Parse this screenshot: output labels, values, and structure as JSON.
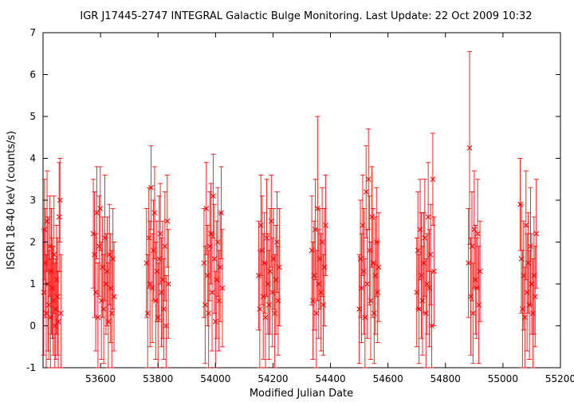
{
  "chart_data": {
    "type": "scatter",
    "title": "IGR J17445-2747    INTEGRAL Galactic Bulge Monitoring.  Last Update: 22 Oct 2009 10:32",
    "xlabel": "Modified Julian Date",
    "ylabel": "ISGRI 18-40 keV (counts/s)",
    "xlim": [
      53400,
      55200
    ],
    "ylim": [
      -1,
      7
    ],
    "xticks": [
      53600,
      53800,
      54000,
      54200,
      54400,
      54600,
      54800,
      55000,
      55200
    ],
    "yticks": [
      -1,
      0,
      1,
      2,
      3,
      4,
      5,
      6,
      7
    ],
    "grid": false,
    "legend": "none",
    "series_color": "#ff0000",
    "error_bars": true,
    "series": [
      {
        "points": [
          {
            "x": 53402,
            "y": 0.8,
            "err": 1.5
          },
          {
            "x": 53405,
            "y": 2.3,
            "err": 1.2
          },
          {
            "x": 53408,
            "y": 1.5,
            "err": 1.3
          },
          {
            "x": 53411,
            "y": 0.3,
            "err": 1.4
          },
          {
            "x": 53414,
            "y": 2.5,
            "err": 1.2
          },
          {
            "x": 53417,
            "y": 1.0,
            "err": 1.6
          },
          {
            "x": 53420,
            "y": 0.5,
            "err": 1.3
          },
          {
            "x": 53423,
            "y": 1.9,
            "err": 1.2
          },
          {
            "x": 53426,
            "y": 0.2,
            "err": 1.4
          },
          {
            "x": 53429,
            "y": 1.3,
            "err": 1.5
          },
          {
            "x": 53432,
            "y": 0.9,
            "err": 1.2
          },
          {
            "x": 53435,
            "y": 0.6,
            "err": 1.3
          },
          {
            "x": 53438,
            "y": 1.7,
            "err": 1.4
          },
          {
            "x": 53441,
            "y": 0.0,
            "err": 1.5
          },
          {
            "x": 53444,
            "y": 0.4,
            "err": 1.2
          },
          {
            "x": 53447,
            "y": 1.1,
            "err": 1.3
          },
          {
            "x": 53450,
            "y": 0.7,
            "err": 1.4
          },
          {
            "x": 53453,
            "y": 0.1,
            "err": 1.2
          },
          {
            "x": 53456,
            "y": 2.6,
            "err": 1.3
          },
          {
            "x": 53459,
            "y": 3.0,
            "err": 1.0
          },
          {
            "x": 53462,
            "y": 0.3,
            "err": 1.4
          },
          {
            "x": 53575,
            "y": 2.2,
            "err": 1.3
          },
          {
            "x": 53579,
            "y": 1.7,
            "err": 1.5
          },
          {
            "x": 53583,
            "y": 0.8,
            "err": 1.4
          },
          {
            "x": 53587,
            "y": 2.7,
            "err": 1.1
          },
          {
            "x": 53591,
            "y": 0.2,
            "err": 1.3
          },
          {
            "x": 53595,
            "y": 1.9,
            "err": 1.2
          },
          {
            "x": 53599,
            "y": 2.8,
            "err": 1.0
          },
          {
            "x": 53603,
            "y": 0.6,
            "err": 1.4
          },
          {
            "x": 53607,
            "y": 1.4,
            "err": 1.2
          },
          {
            "x": 53611,
            "y": 0.4,
            "err": 1.3
          },
          {
            "x": 53615,
            "y": 2.1,
            "err": 1.5
          },
          {
            "x": 53619,
            "y": 1.0,
            "err": 1.2
          },
          {
            "x": 53623,
            "y": 1.3,
            "err": 1.3
          },
          {
            "x": 53627,
            "y": 0.1,
            "err": 1.4
          },
          {
            "x": 53631,
            "y": 1.7,
            "err": 1.2
          },
          {
            "x": 53635,
            "y": 0.9,
            "err": 1.3
          },
          {
            "x": 53639,
            "y": 0.3,
            "err": 1.5
          },
          {
            "x": 53643,
            "y": 1.6,
            "err": 1.2
          },
          {
            "x": 53647,
            "y": 0.7,
            "err": 1.3
          },
          {
            "x": 53760,
            "y": 1.5,
            "err": 1.3
          },
          {
            "x": 53764,
            "y": 0.3,
            "err": 1.4
          },
          {
            "x": 53768,
            "y": 2.1,
            "err": 1.2
          },
          {
            "x": 53772,
            "y": 1.0,
            "err": 1.5
          },
          {
            "x": 53776,
            "y": 3.3,
            "err": 1.0
          },
          {
            "x": 53780,
            "y": 0.9,
            "err": 1.3
          },
          {
            "x": 53784,
            "y": 1.8,
            "err": 1.2
          },
          {
            "x": 53788,
            "y": 2.7,
            "err": 1.1
          },
          {
            "x": 53792,
            "y": 0.6,
            "err": 1.4
          },
          {
            "x": 53796,
            "y": 1.3,
            "err": 1.2
          },
          {
            "x": 53800,
            "y": 0.2,
            "err": 1.3
          },
          {
            "x": 53804,
            "y": 1.6,
            "err": 1.5
          },
          {
            "x": 53808,
            "y": 2.2,
            "err": 1.2
          },
          {
            "x": 53812,
            "y": 0.8,
            "err": 1.3
          },
          {
            "x": 53816,
            "y": 1.1,
            "err": 1.4
          },
          {
            "x": 53820,
            "y": 0.4,
            "err": 1.2
          },
          {
            "x": 53824,
            "y": 1.9,
            "err": 1.3
          },
          {
            "x": 53828,
            "y": 0.0,
            "err": 1.2
          },
          {
            "x": 53832,
            "y": 2.5,
            "err": 1.1
          },
          {
            "x": 53836,
            "y": 1.0,
            "err": 1.3
          },
          {
            "x": 53960,
            "y": 1.5,
            "err": 1.3
          },
          {
            "x": 53964,
            "y": 0.5,
            "err": 1.4
          },
          {
            "x": 53968,
            "y": 2.8,
            "err": 1.1
          },
          {
            "x": 53972,
            "y": 1.2,
            "err": 1.2
          },
          {
            "x": 53976,
            "y": 0.3,
            "err": 1.5
          },
          {
            "x": 53980,
            "y": 1.9,
            "err": 1.3
          },
          {
            "x": 53984,
            "y": 2.2,
            "err": 1.2
          },
          {
            "x": 53988,
            "y": 0.8,
            "err": 1.4
          },
          {
            "x": 53992,
            "y": 3.1,
            "err": 1.0
          },
          {
            "x": 53996,
            "y": 1.6,
            "err": 1.3
          },
          {
            "x": 54000,
            "y": 0.1,
            "err": 1.2
          },
          {
            "x": 54004,
            "y": 1.1,
            "err": 1.4
          },
          {
            "x": 54008,
            "y": 2.0,
            "err": 1.3
          },
          {
            "x": 54012,
            "y": 0.6,
            "err": 1.2
          },
          {
            "x": 54016,
            "y": 1.4,
            "err": 1.3
          },
          {
            "x": 54020,
            "y": 2.7,
            "err": 1.1
          },
          {
            "x": 54024,
            "y": 0.9,
            "err": 1.4
          },
          {
            "x": 54150,
            "y": 1.2,
            "err": 1.3
          },
          {
            "x": 54154,
            "y": 0.4,
            "err": 1.4
          },
          {
            "x": 54158,
            "y": 2.4,
            "err": 1.2
          },
          {
            "x": 54162,
            "y": 1.8,
            "err": 1.3
          },
          {
            "x": 54166,
            "y": 0.7,
            "err": 1.5
          },
          {
            "x": 54170,
            "y": 1.5,
            "err": 1.2
          },
          {
            "x": 54174,
            "y": 0.2,
            "err": 1.3
          },
          {
            "x": 54178,
            "y": 2.1,
            "err": 1.4
          },
          {
            "x": 54182,
            "y": 1.0,
            "err": 1.2
          },
          {
            "x": 54186,
            "y": 0.5,
            "err": 1.3
          },
          {
            "x": 54190,
            "y": 1.3,
            "err": 1.5
          },
          {
            "x": 54194,
            "y": 2.5,
            "err": 1.1
          },
          {
            "x": 54198,
            "y": 0.8,
            "err": 1.3
          },
          {
            "x": 54202,
            "y": 1.6,
            "err": 1.2
          },
          {
            "x": 54206,
            "y": 0.3,
            "err": 1.4
          },
          {
            "x": 54210,
            "y": 1.1,
            "err": 1.3
          },
          {
            "x": 54214,
            "y": 2.0,
            "err": 1.2
          },
          {
            "x": 54218,
            "y": 0.6,
            "err": 1.3
          },
          {
            "x": 54222,
            "y": 1.4,
            "err": 1.4
          },
          {
            "x": 54335,
            "y": 1.8,
            "err": 1.3
          },
          {
            "x": 54339,
            "y": 0.6,
            "err": 1.4
          },
          {
            "x": 54343,
            "y": 1.2,
            "err": 1.3
          },
          {
            "x": 54347,
            "y": 2.3,
            "err": 1.2
          },
          {
            "x": 54351,
            "y": 0.3,
            "err": 1.5
          },
          {
            "x": 54355,
            "y": 2.8,
            "err": 2.2
          },
          {
            "x": 54359,
            "y": 1.0,
            "err": 1.3
          },
          {
            "x": 54363,
            "y": 1.6,
            "err": 1.2
          },
          {
            "x": 54367,
            "y": 0.8,
            "err": 1.4
          },
          {
            "x": 54371,
            "y": 2.0,
            "err": 1.3
          },
          {
            "x": 54375,
            "y": 0.5,
            "err": 1.2
          },
          {
            "x": 54379,
            "y": 1.4,
            "err": 1.4
          },
          {
            "x": 54383,
            "y": 2.4,
            "err": 1.2
          },
          {
            "x": 54500,
            "y": 0.4,
            "err": 1.3
          },
          {
            "x": 54504,
            "y": 1.6,
            "err": 1.4
          },
          {
            "x": 54508,
            "y": 0.9,
            "err": 1.3
          },
          {
            "x": 54512,
            "y": 2.4,
            "err": 1.2
          },
          {
            "x": 54516,
            "y": 1.3,
            "err": 1.5
          },
          {
            "x": 54520,
            "y": 0.2,
            "err": 1.4
          },
          {
            "x": 54524,
            "y": 3.2,
            "err": 1.1
          },
          {
            "x": 54528,
            "y": 1.0,
            "err": 1.3
          },
          {
            "x": 54532,
            "y": 3.5,
            "err": 1.2
          },
          {
            "x": 54536,
            "y": 1.8,
            "err": 1.3
          },
          {
            "x": 54540,
            "y": 0.6,
            "err": 1.4
          },
          {
            "x": 54544,
            "y": 2.6,
            "err": 1.2
          },
          {
            "x": 54548,
            "y": 1.5,
            "err": 1.3
          },
          {
            "x": 54552,
            "y": 0.3,
            "err": 1.2
          },
          {
            "x": 54556,
            "y": 1.2,
            "err": 1.4
          },
          {
            "x": 54560,
            "y": 2.0,
            "err": 1.3
          },
          {
            "x": 54564,
            "y": 0.8,
            "err": 1.2
          },
          {
            "x": 54568,
            "y": 1.4,
            "err": 1.3
          },
          {
            "x": 54700,
            "y": 0.8,
            "err": 1.3
          },
          {
            "x": 54704,
            "y": 1.8,
            "err": 1.4
          },
          {
            "x": 54708,
            "y": 0.4,
            "err": 1.3
          },
          {
            "x": 54712,
            "y": 2.3,
            "err": 1.2
          },
          {
            "x": 54716,
            "y": 1.2,
            "err": 1.5
          },
          {
            "x": 54720,
            "y": 0.6,
            "err": 1.3
          },
          {
            "x": 54724,
            "y": 1.5,
            "err": 1.2
          },
          {
            "x": 54728,
            "y": 2.1,
            "err": 1.4
          },
          {
            "x": 54732,
            "y": 0.3,
            "err": 1.3
          },
          {
            "x": 54736,
            "y": 1.0,
            "err": 1.2
          },
          {
            "x": 54740,
            "y": 2.6,
            "err": 1.3
          },
          {
            "x": 54744,
            "y": 0.9,
            "err": 1.4
          },
          {
            "x": 54748,
            "y": 1.7,
            "err": 1.2
          },
          {
            "x": 54752,
            "y": 0.0,
            "err": 1.3
          },
          {
            "x": 54756,
            "y": 3.5,
            "err": 1.1
          },
          {
            "x": 54760,
            "y": 1.3,
            "err": 1.3
          },
          {
            "x": 54880,
            "y": 1.5,
            "err": 1.3
          },
          {
            "x": 54884,
            "y": 4.25,
            "err": 2.3
          },
          {
            "x": 54888,
            "y": 0.7,
            "err": 1.4
          },
          {
            "x": 54892,
            "y": 1.9,
            "err": 1.3
          },
          {
            "x": 54896,
            "y": 0.3,
            "err": 1.2
          },
          {
            "x": 54900,
            "y": 2.3,
            "err": 1.4
          },
          {
            "x": 54904,
            "y": 1.1,
            "err": 1.3
          },
          {
            "x": 54908,
            "y": 0.9,
            "err": 1.2
          },
          {
            "x": 54912,
            "y": 2.2,
            "err": 1.3
          },
          {
            "x": 54916,
            "y": 0.5,
            "err": 1.4
          },
          {
            "x": 54920,
            "y": 1.3,
            "err": 1.2
          },
          {
            "x": 55060,
            "y": 2.9,
            "err": 1.1
          },
          {
            "x": 55064,
            "y": 1.6,
            "err": 1.3
          },
          {
            "x": 55068,
            "y": 0.4,
            "err": 1.4
          },
          {
            "x": 55072,
            "y": 1.2,
            "err": 1.3
          },
          {
            "x": 55076,
            "y": 0.2,
            "err": 1.2
          },
          {
            "x": 55080,
            "y": 2.4,
            "err": 1.3
          },
          {
            "x": 55084,
            "y": 0.8,
            "err": 1.4
          },
          {
            "x": 55088,
            "y": 1.5,
            "err": 1.2
          },
          {
            "x": 55092,
            "y": 0.5,
            "err": 1.3
          },
          {
            "x": 55096,
            "y": 1.9,
            "err": 1.4
          },
          {
            "x": 55100,
            "y": 1.0,
            "err": 1.2
          },
          {
            "x": 55104,
            "y": 0.3,
            "err": 1.3
          },
          {
            "x": 55108,
            "y": 1.2,
            "err": 1.4
          },
          {
            "x": 55112,
            "y": 0.7,
            "err": 1.2
          },
          {
            "x": 55116,
            "y": 2.2,
            "err": 1.3
          }
        ]
      }
    ]
  }
}
